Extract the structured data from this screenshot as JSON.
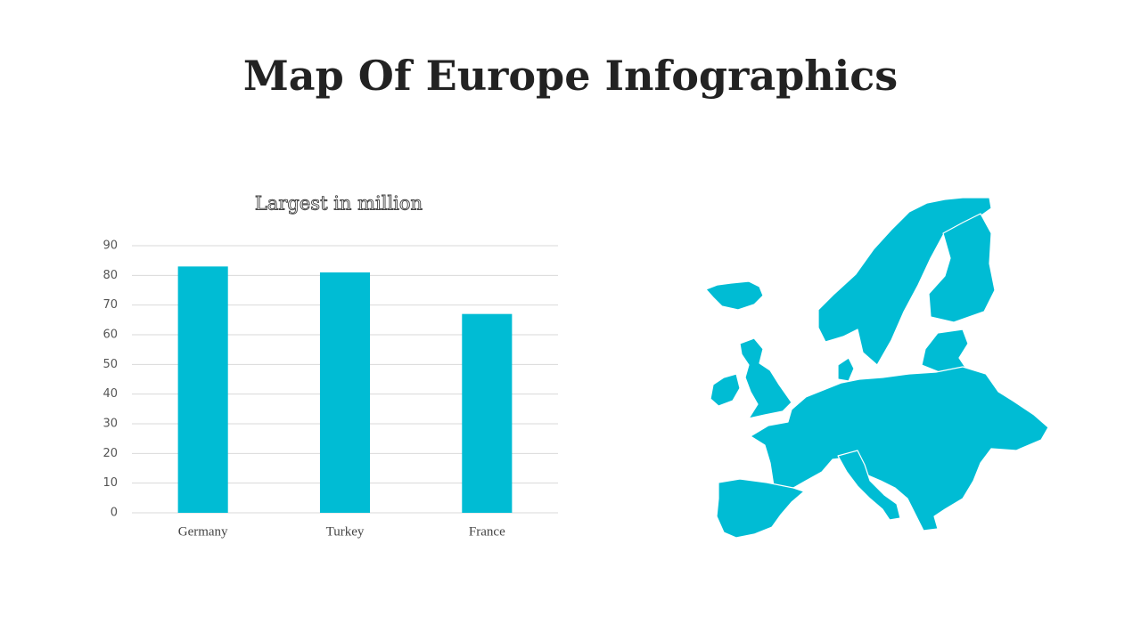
{
  "title": "Map Of Europe Infographics",
  "chart_data": {
    "type": "bar",
    "title": "Largest in million",
    "categories": [
      "Germany",
      "Turkey",
      "France"
    ],
    "values": [
      83,
      81,
      67
    ],
    "color": "#00bcd4",
    "ylim": [
      0,
      90
    ],
    "yticks": [
      0,
      10,
      20,
      30,
      40,
      50,
      60,
      70,
      80,
      90
    ],
    "grid": true
  }
}
